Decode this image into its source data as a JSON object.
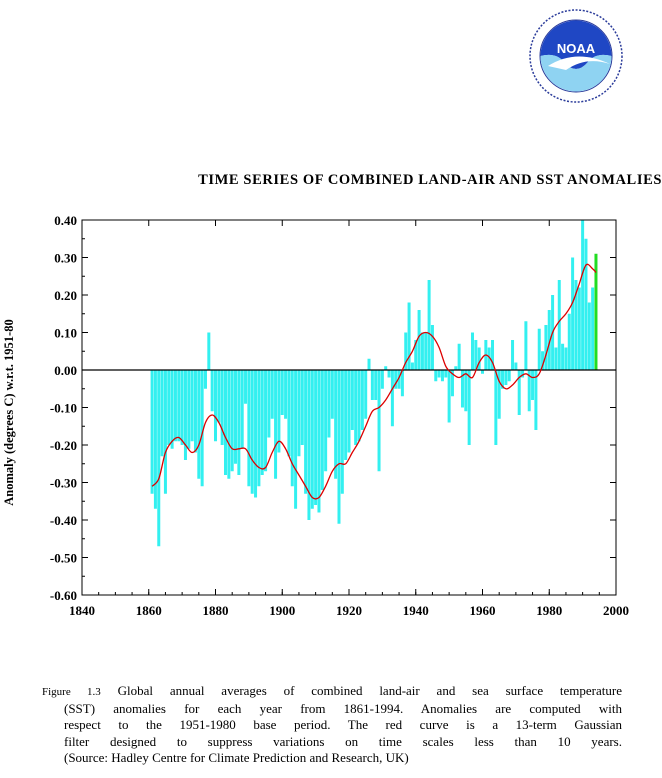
{
  "logo": {
    "text": "NOAA"
  },
  "chart_data": {
    "type": "bar",
    "title": "TIME SERIES OF COMBINED LAND-AIR AND SST ANOMALIES",
    "xlabel": "",
    "ylabel": "Anomaly (degrees C) w.r.t. 1951-80",
    "xlim": [
      1840,
      2000
    ],
    "ylim": [
      -0.6,
      0.4
    ],
    "x_ticks": [
      1840,
      1860,
      1880,
      1900,
      1920,
      1940,
      1960,
      1980,
      2000
    ],
    "y_ticks": [
      "0.40",
      "0.30",
      "0.20",
      "0.10",
      "0.00",
      "-0.10",
      "-0.20",
      "-0.30",
      "-0.40",
      "-0.50",
      "-0.60"
    ],
    "grid": false,
    "colors": {
      "bars": "#33f0f0",
      "last_bar": "#22dd22",
      "smooth": "#dd0000"
    },
    "series": [
      {
        "type": "bar",
        "x": [
          1861,
          1862,
          1863,
          1864,
          1865,
          1866,
          1867,
          1868,
          1869,
          1870,
          1871,
          1872,
          1873,
          1874,
          1875,
          1876,
          1877,
          1878,
          1879,
          1880,
          1881,
          1882,
          1883,
          1884,
          1885,
          1886,
          1887,
          1888,
          1889,
          1890,
          1891,
          1892,
          1893,
          1894,
          1895,
          1896,
          1897,
          1898,
          1899,
          1900,
          1901,
          1902,
          1903,
          1904,
          1905,
          1906,
          1907,
          1908,
          1909,
          1910,
          1911,
          1912,
          1913,
          1914,
          1915,
          1916,
          1917,
          1918,
          1919,
          1920,
          1921,
          1922,
          1923,
          1924,
          1925,
          1926,
          1927,
          1928,
          1929,
          1930,
          1931,
          1932,
          1933,
          1934,
          1935,
          1936,
          1937,
          1938,
          1939,
          1940,
          1941,
          1942,
          1943,
          1944,
          1945,
          1946,
          1947,
          1948,
          1949,
          1950,
          1951,
          1952,
          1953,
          1954,
          1955,
          1956,
          1957,
          1958,
          1959,
          1960,
          1961,
          1962,
          1963,
          1964,
          1965,
          1966,
          1967,
          1968,
          1969,
          1970,
          1971,
          1972,
          1973,
          1974,
          1975,
          1976,
          1977,
          1978,
          1979,
          1980,
          1981,
          1982,
          1983,
          1984,
          1985,
          1986,
          1987,
          1988,
          1989,
          1990,
          1991,
          1992,
          1993,
          1994
        ],
        "values": [
          -0.33,
          -0.37,
          -0.47,
          -0.23,
          -0.33,
          -0.2,
          -0.21,
          -0.19,
          -0.19,
          -0.2,
          -0.24,
          -0.21,
          -0.19,
          -0.22,
          -0.29,
          -0.31,
          -0.05,
          0.1,
          -0.11,
          -0.19,
          -0.14,
          -0.2,
          -0.28,
          -0.29,
          -0.27,
          -0.25,
          -0.28,
          -0.21,
          -0.09,
          -0.31,
          -0.33,
          -0.34,
          -0.31,
          -0.28,
          -0.27,
          -0.18,
          -0.13,
          -0.29,
          -0.22,
          -0.12,
          -0.13,
          -0.23,
          -0.31,
          -0.37,
          -0.23,
          -0.2,
          -0.33,
          -0.4,
          -0.37,
          -0.36,
          -0.38,
          -0.32,
          -0.27,
          -0.18,
          -0.13,
          -0.29,
          -0.41,
          -0.33,
          -0.24,
          -0.22,
          -0.16,
          -0.2,
          -0.19,
          -0.16,
          -0.13,
          0.03,
          -0.08,
          -0.08,
          -0.27,
          -0.05,
          0.01,
          -0.02,
          -0.15,
          -0.05,
          -0.05,
          -0.07,
          0.1,
          0.18,
          0.02,
          0.08,
          0.16,
          0.1,
          0.1,
          0.24,
          0.12,
          -0.03,
          -0.02,
          -0.03,
          -0.02,
          -0.14,
          -0.07,
          0.01,
          0.07,
          -0.1,
          -0.11,
          -0.2,
          0.1,
          0.08,
          0.06,
          -0.01,
          0.08,
          0.06,
          0.08,
          -0.2,
          -0.13,
          -0.05,
          -0.04,
          -0.03,
          0.08,
          0.02,
          -0.12,
          -0.02,
          0.13,
          -0.11,
          -0.08,
          -0.16,
          0.11,
          0.05,
          0.12,
          0.16,
          0.2,
          0.06,
          0.24,
          0.07,
          0.06,
          0.15,
          0.3,
          0.24,
          0.22,
          0.4,
          0.35,
          0.18,
          0.22,
          0.31
        ]
      },
      {
        "type": "line",
        "name": "13-term Gaussian filter",
        "x": [
          1861,
          1863,
          1865,
          1867,
          1869,
          1871,
          1873,
          1875,
          1877,
          1879,
          1881,
          1883,
          1885,
          1887,
          1889,
          1891,
          1893,
          1895,
          1897,
          1899,
          1901,
          1903,
          1905,
          1907,
          1909,
          1911,
          1913,
          1915,
          1917,
          1919,
          1921,
          1923,
          1925,
          1927,
          1929,
          1931,
          1933,
          1935,
          1937,
          1939,
          1941,
          1943,
          1945,
          1947,
          1949,
          1951,
          1953,
          1955,
          1957,
          1959,
          1961,
          1963,
          1965,
          1967,
          1969,
          1971,
          1973,
          1975,
          1977,
          1979,
          1981,
          1983,
          1985,
          1987,
          1989,
          1991,
          1993,
          1994
        ],
        "values": [
          -0.31,
          -0.29,
          -0.22,
          -0.19,
          -0.18,
          -0.2,
          -0.22,
          -0.2,
          -0.14,
          -0.12,
          -0.14,
          -0.18,
          -0.21,
          -0.21,
          -0.21,
          -0.24,
          -0.26,
          -0.26,
          -0.22,
          -0.19,
          -0.21,
          -0.25,
          -0.28,
          -0.31,
          -0.34,
          -0.34,
          -0.31,
          -0.27,
          -0.25,
          -0.25,
          -0.22,
          -0.19,
          -0.15,
          -0.11,
          -0.1,
          -0.08,
          -0.05,
          -0.02,
          0.02,
          0.05,
          0.09,
          0.1,
          0.09,
          0.06,
          0.01,
          -0.01,
          -0.02,
          -0.01,
          -0.02,
          0.02,
          0.04,
          0.02,
          -0.03,
          -0.05,
          -0.04,
          -0.02,
          -0.01,
          -0.02,
          -0.01,
          0.04,
          0.1,
          0.13,
          0.15,
          0.18,
          0.23,
          0.28,
          0.27,
          0.26
        ]
      }
    ]
  },
  "caption": {
    "figure_label": "Figure 1.3",
    "line1": "Global annual averages of combined land-air and sea surface temperature",
    "line2": "(SST) anomalies for each year from 1861-1994. Anomalies are computed with",
    "line3": "respect to the 1951-1980 base period. The red curve is a 13-term Gaussian",
    "line4": "filter designed to suppress variations on time scales less than 10 years.",
    "line5": "(Source: Hadley Centre for Climate Prediction and Research, UK)"
  }
}
